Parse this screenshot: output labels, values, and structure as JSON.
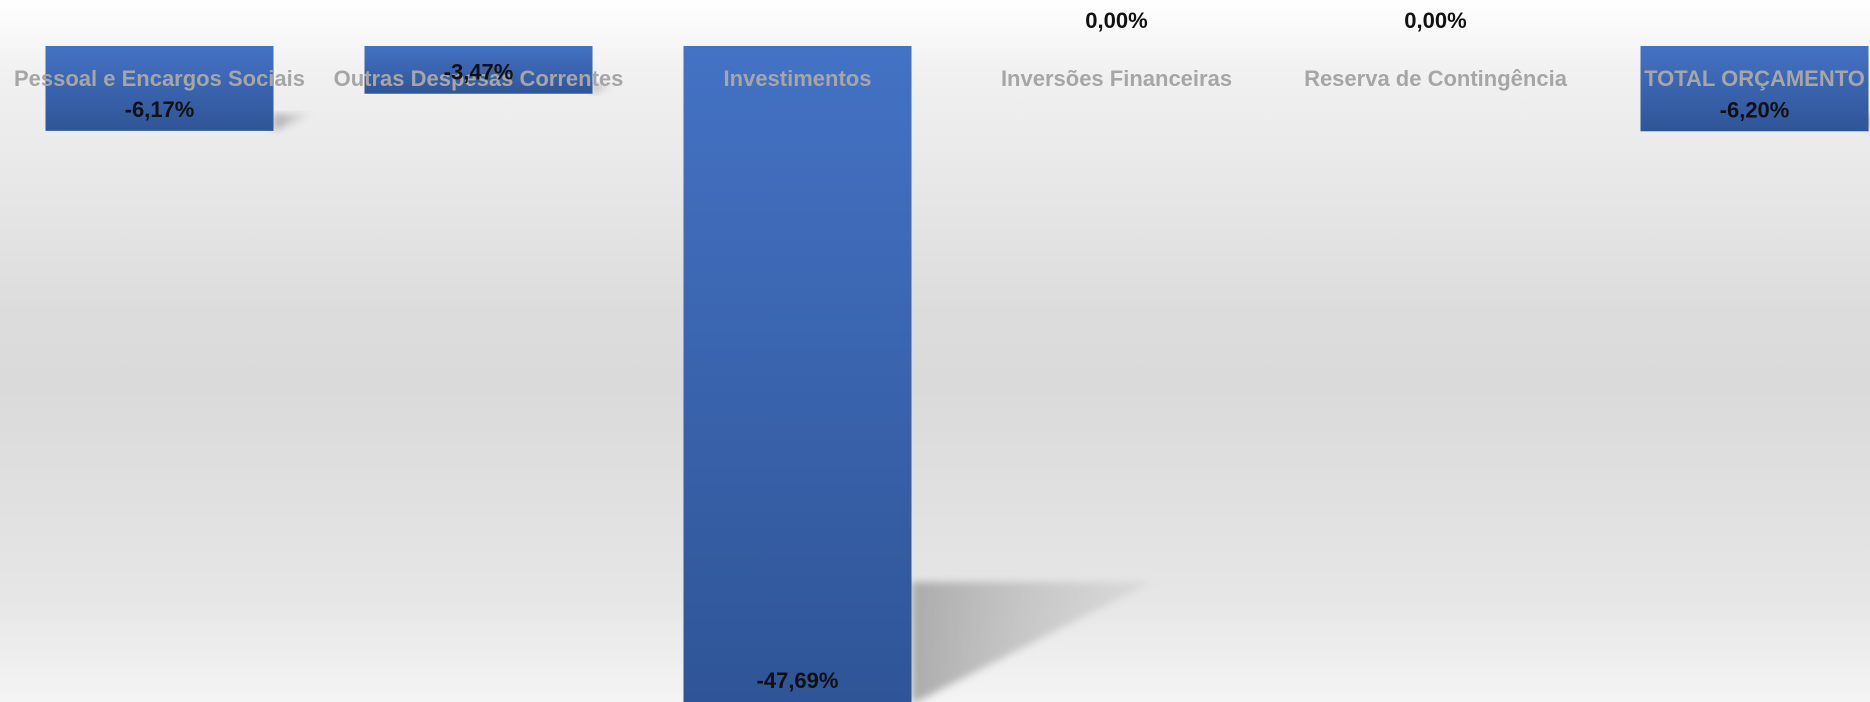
{
  "chart_data": {
    "type": "bar",
    "categories": [
      "Pessoal e Encargos Sociais",
      "Outras Despesas Correntes",
      "Investimentos",
      "Inversões Financeiras",
      "Reserva de Contingência",
      "TOTAL ORÇAMENTO"
    ],
    "values": [
      -6.17,
      -3.47,
      -47.69,
      0.0,
      0.0,
      -6.2
    ],
    "value_labels": [
      "-6,17%",
      "-3,47%",
      "-47,69%",
      "0,00%",
      "0,00%",
      "-6,20%"
    ],
    "ylim": [
      -47.69,
      0
    ],
    "grid": false,
    "legend": "none",
    "colors": {
      "bar_top": "#4472c4",
      "bar_bottom": "#2f5597",
      "shadow": "#b0b0b0",
      "category_label": "#a6a6a6",
      "value_label": "#111111"
    }
  }
}
